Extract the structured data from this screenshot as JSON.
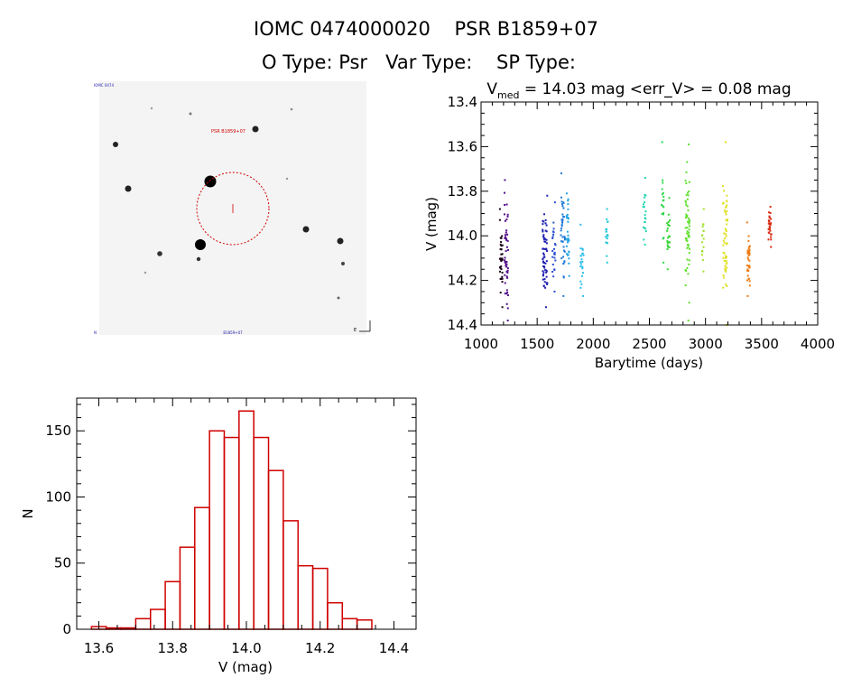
{
  "header": {
    "title_line1": "IOMC 0474000020    PSR B1859+07",
    "title_line2": "O Type: Psr   Var Type:    SP Type:"
  },
  "finder": {
    "target_label": "PSR B1859+07",
    "corner_tl": "IOMC 0474",
    "corner_bl": "N",
    "bottom_center": "B1859+07",
    "corner_br": "E"
  },
  "chart_data": [
    {
      "id": "lightcurve",
      "type": "scatter",
      "title_prefix": "V",
      "title_sub": "med",
      "title_rest": " = 14.03 mag <err_V> = 0.08 mag",
      "xlabel": "Barytime (days)",
      "ylabel": "V (mag)",
      "xlim": [
        1000,
        4000
      ],
      "ylim": [
        14.4,
        13.4
      ],
      "xticks": [
        1000,
        1500,
        2000,
        2500,
        3000,
        3500,
        4000
      ],
      "yticks": [
        13.4,
        13.6,
        13.8,
        14.0,
        14.2,
        14.4
      ],
      "ytick_labels": [
        "13.4",
        "13.6",
        "13.8",
        "14.0",
        "14.2",
        "14.4"
      ],
      "clusters": [
        {
          "x": 1180,
          "xspread": 12,
          "ymin": 13.88,
          "ymax": 14.32,
          "n": 36,
          "color": "#1a0018"
        },
        {
          "x": 1225,
          "xspread": 16,
          "ymin": 13.75,
          "ymax": 14.38,
          "n": 48,
          "color": "#55108a"
        },
        {
          "x": 1570,
          "xspread": 22,
          "ymin": 13.82,
          "ymax": 14.32,
          "n": 60,
          "color": "#1f1fb0"
        },
        {
          "x": 1650,
          "xspread": 14,
          "ymin": 13.85,
          "ymax": 14.25,
          "n": 24,
          "color": "#2a4fd0"
        },
        {
          "x": 1730,
          "xspread": 18,
          "ymin": 13.72,
          "ymax": 14.27,
          "n": 40,
          "color": "#1e78d8"
        },
        {
          "x": 1775,
          "xspread": 12,
          "ymin": 13.81,
          "ymax": 14.18,
          "n": 30,
          "color": "#24a6e6"
        },
        {
          "x": 1900,
          "xspread": 14,
          "ymin": 13.95,
          "ymax": 14.27,
          "n": 22,
          "color": "#27bde8"
        },
        {
          "x": 2120,
          "xspread": 10,
          "ymin": 13.88,
          "ymax": 14.12,
          "n": 18,
          "color": "#1fc8d8"
        },
        {
          "x": 2460,
          "xspread": 16,
          "ymin": 13.74,
          "ymax": 14.04,
          "n": 20,
          "color": "#20d6b0"
        },
        {
          "x": 2620,
          "xspread": 10,
          "ymin": 13.58,
          "ymax": 14.12,
          "n": 18,
          "color": "#2ad84a"
        },
        {
          "x": 2670,
          "xspread": 12,
          "ymin": 13.83,
          "ymax": 14.15,
          "n": 26,
          "color": "#3ad63a"
        },
        {
          "x": 2840,
          "xspread": 18,
          "ymin": 13.59,
          "ymax": 14.38,
          "n": 60,
          "color": "#5fe02e"
        },
        {
          "x": 2975,
          "xspread": 10,
          "ymin": 13.88,
          "ymax": 14.16,
          "n": 16,
          "color": "#a0e028"
        },
        {
          "x": 3175,
          "xspread": 20,
          "ymin": 13.58,
          "ymax": 14.4,
          "n": 55,
          "color": "#e0e020"
        },
        {
          "x": 3385,
          "xspread": 14,
          "ymin": 13.94,
          "ymax": 14.27,
          "n": 34,
          "color": "#f07a12"
        },
        {
          "x": 3575,
          "xspread": 14,
          "ymin": 13.87,
          "ymax": 14.05,
          "n": 30,
          "color": "#d82a10"
        }
      ]
    },
    {
      "id": "histogram",
      "type": "bar",
      "xlabel": "V (mag)",
      "ylabel": "N",
      "xlim": [
        13.54,
        14.46
      ],
      "ylim": [
        0,
        172
      ],
      "xticks": [
        13.6,
        13.8,
        14.0,
        14.2,
        14.4
      ],
      "xtick_labels": [
        "13.6",
        "13.8",
        "14.0",
        "14.2",
        "14.4"
      ],
      "yticks": [
        0,
        50,
        100,
        150
      ],
      "ytick_labels": [
        "0",
        "50",
        "100",
        "150"
      ],
      "bin_width": 0.04,
      "bin_starts": [
        13.58,
        13.62,
        13.66,
        13.7,
        13.74,
        13.78,
        13.82,
        13.86,
        13.9,
        13.94,
        13.98,
        14.02,
        14.06,
        14.1,
        14.14,
        14.18,
        14.22,
        14.26,
        14.3,
        14.34,
        14.38
      ],
      "values": [
        2,
        1,
        1,
        8,
        15,
        36,
        62,
        92,
        150,
        145,
        165,
        145,
        120,
        82,
        48,
        46,
        20,
        8,
        7,
        0,
        0
      ],
      "bar_color": "#d00000"
    }
  ]
}
